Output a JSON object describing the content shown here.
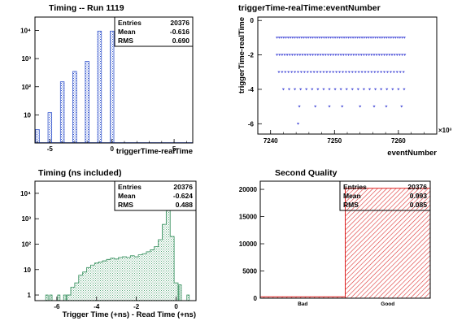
{
  "chart_data": [
    {
      "type": "bar",
      "title": "Timing -- Run 1119",
      "xlabel": "triggerTime-realTime",
      "ylabel": "",
      "xlim": [
        -6.2,
        6.5
      ],
      "ylim": [
        1,
        30000
      ],
      "log_y": true,
      "xticks": [
        "-5",
        "0",
        "5"
      ],
      "yticks": [
        "10",
        "10²",
        "10³",
        "10⁴"
      ],
      "bins": [
        {
          "x": -6,
          "value": 3
        },
        {
          "x": -5,
          "value": 12
        },
        {
          "x": -4,
          "value": 150
        },
        {
          "x": -3,
          "value": 350
        },
        {
          "x": -2,
          "value": 800
        },
        {
          "x": -1,
          "value": 9500
        },
        {
          "x": 0,
          "value": 9500
        }
      ],
      "stats": [
        {
          "label": "Entries",
          "value": "20376"
        },
        {
          "label": "Mean",
          "value": "-0.616"
        },
        {
          "label": "RMS",
          "value": "0.690"
        }
      ],
      "color": "#3355cc"
    },
    {
      "type": "scatter",
      "title": "triggerTime-realTime:eventNumber",
      "xlabel": "eventNumber",
      "ylabel": "triggerTime-realTime",
      "xlim": [
        7238,
        7266
      ],
      "ylim": [
        -6.6,
        0.2
      ],
      "x_multiplier": "×10³",
      "xticks": [
        "7240",
        "7250",
        "7260"
      ],
      "yticks": [
        "-6",
        "-4",
        "-2",
        "0"
      ],
      "rows": [
        {
          "y": -1,
          "x_start": 7241,
          "x_end": 7261,
          "step": 0.35
        },
        {
          "y": -2,
          "x_start": 7241,
          "x_end": 7261,
          "step": 0.4
        },
        {
          "y": -3,
          "x_start": 7241.3,
          "x_end": 7261,
          "step": 0.5
        },
        {
          "y": -4,
          "x_start": 7242,
          "x_end": 7261,
          "step": 0.9
        },
        {
          "y": -5,
          "points": [
            7244.5,
            7247,
            7249.2,
            7251.2,
            7254,
            7256.2,
            7258.1,
            7260.5
          ]
        },
        {
          "y": -6,
          "points": [
            7244.3
          ]
        }
      ],
      "color": "#4a4fd8"
    },
    {
      "type": "area",
      "title": "Timing (ns included)",
      "xlabel": "Trigger Time (+ns) - Read Time (+ns)",
      "ylabel": "",
      "xlim": [
        -7.1,
        1.0
      ],
      "ylim": [
        0.6,
        30000
      ],
      "log_y": true,
      "xticks": [
        "-6",
        "-4",
        "-2",
        "0"
      ],
      "yticks": [
        "1",
        "10",
        "10²",
        "10³",
        "10⁴"
      ],
      "spikes": [
        {
          "x": -6.5,
          "value": 1
        },
        {
          "x": -6.3,
          "value": 1
        },
        {
          "x": -5.9,
          "value": 1
        },
        {
          "x": -5.6,
          "value": 1
        },
        {
          "x": 0.2,
          "value": 2.5
        },
        {
          "x": 0.6,
          "value": 1
        }
      ],
      "profile": [
        {
          "x": -5.4,
          "value": 1
        },
        {
          "x": -5.2,
          "value": 2
        },
        {
          "x": -5.0,
          "value": 3
        },
        {
          "x": -4.8,
          "value": 6
        },
        {
          "x": -4.6,
          "value": 8
        },
        {
          "x": -4.4,
          "value": 12
        },
        {
          "x": -4.2,
          "value": 15
        },
        {
          "x": -4.0,
          "value": 18
        },
        {
          "x": -3.8,
          "value": 20
        },
        {
          "x": -3.6,
          "value": 22
        },
        {
          "x": -3.4,
          "value": 25
        },
        {
          "x": -3.2,
          "value": 28
        },
        {
          "x": -3.0,
          "value": 26
        },
        {
          "x": -2.8,
          "value": 30
        },
        {
          "x": -2.6,
          "value": 32
        },
        {
          "x": -2.4,
          "value": 30
        },
        {
          "x": -2.2,
          "value": 35
        },
        {
          "x": -2.0,
          "value": 32
        },
        {
          "x": -1.8,
          "value": 38
        },
        {
          "x": -1.6,
          "value": 42
        },
        {
          "x": -1.4,
          "value": 50
        },
        {
          "x": -1.2,
          "value": 60
        },
        {
          "x": -1.0,
          "value": 80
        },
        {
          "x": -0.8,
          "value": 150
        },
        {
          "x": -0.6,
          "value": 600
        },
        {
          "x": -0.4,
          "value": 4000
        },
        {
          "x": -0.2,
          "value": 200
        },
        {
          "x": 0.0,
          "value": 3
        }
      ],
      "stats": [
        {
          "label": "Entries",
          "value": "20376"
        },
        {
          "label": "Mean",
          "value": "-0.624"
        },
        {
          "label": "RMS",
          "value": "0.488"
        }
      ],
      "color": "#2e8b57"
    },
    {
      "type": "bar",
      "title": "Second Quality",
      "xlabel": "",
      "ylabel": "",
      "categories": [
        "Bad",
        "Good"
      ],
      "values": [
        250,
        20200
      ],
      "ylim": [
        0,
        21500
      ],
      "yticks": [
        "0",
        "5000",
        "10000",
        "15000",
        "20000"
      ],
      "stats": [
        {
          "label": "Entries",
          "value": "20376"
        },
        {
          "label": "Mean",
          "value": "0.993"
        },
        {
          "label": "RMS",
          "value": "0.085"
        }
      ],
      "color": "#dd2222"
    }
  ]
}
